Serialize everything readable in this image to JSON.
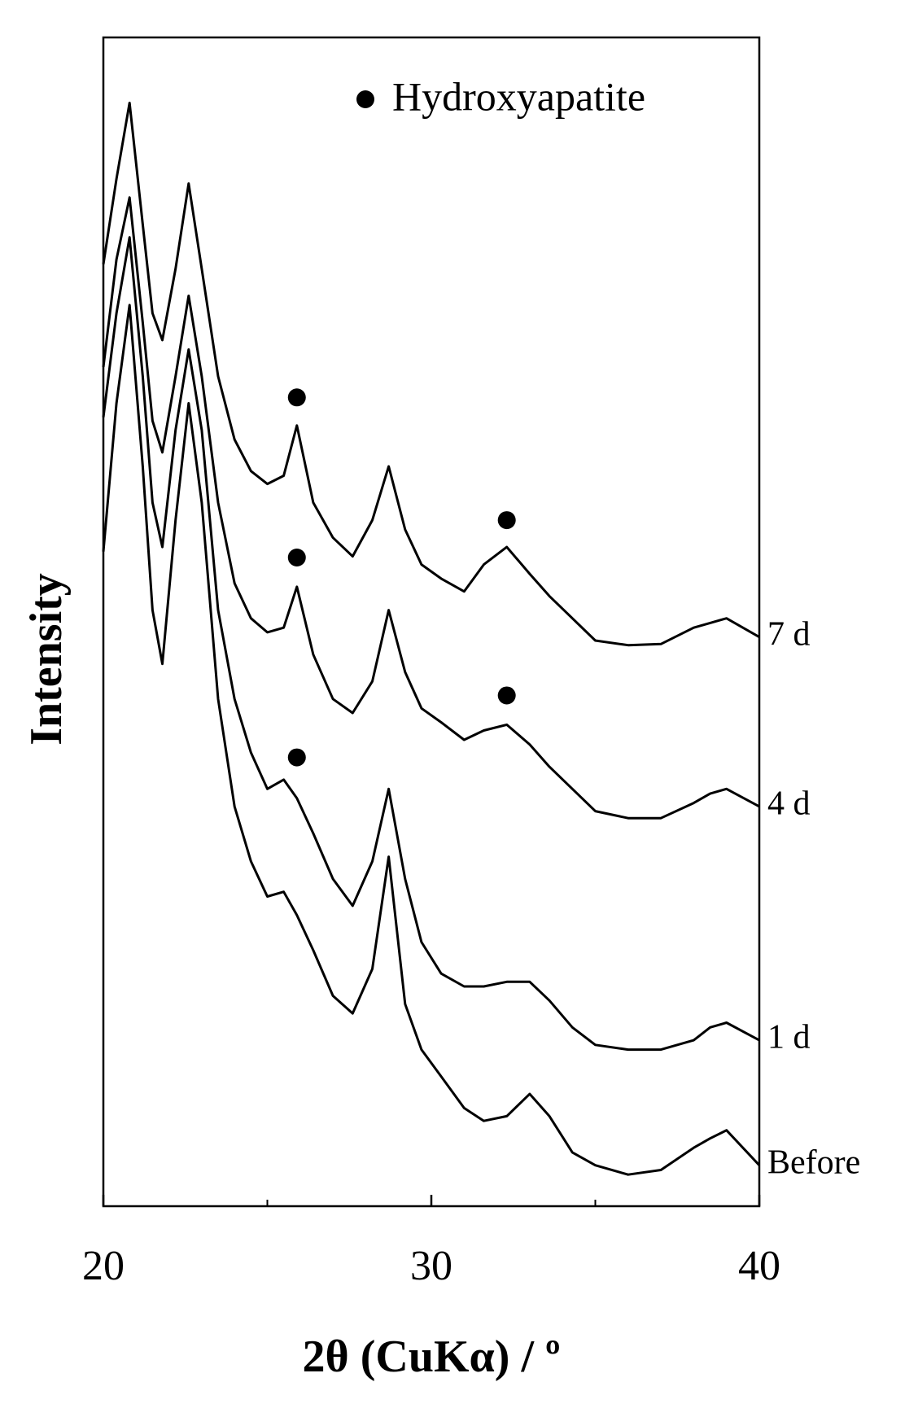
{
  "chart_data": {
    "type": "line",
    "x_label": "2θ (CuKα) / º",
    "y_label": "Intensity",
    "x": [
      20,
      20.4,
      20.8,
      21.2,
      21.5,
      21.8,
      22.2,
      22.6,
      23.0,
      23.5,
      24.0,
      24.5,
      25.0,
      25.5,
      25.9,
      26.4,
      27.0,
      27.6,
      28.2,
      28.7,
      29.2,
      29.7,
      30.3,
      31.0,
      31.6,
      32.3,
      33.0,
      33.6,
      34.3,
      35.0,
      36.0,
      37.0,
      38.0,
      38.5,
      39.0,
      40.0
    ],
    "series": [
      {
        "name": "7 d",
        "color": "#000000",
        "values": [
          80.6,
          87.9,
          94.4,
          84.0,
          76.4,
          74.1,
          80.2,
          87.5,
          80.2,
          71.0,
          65.6,
          62.9,
          61.8,
          62.5,
          66.8,
          60.2,
          57.2,
          55.6,
          58.7,
          63.3,
          57.9,
          54.9,
          53.7,
          52.6,
          54.9,
          56.4,
          54.1,
          52.2,
          50.3,
          48.4,
          48.0,
          48.1,
          49.5,
          49.9,
          50.3,
          48.7
        ]
      },
      {
        "name": "4 d",
        "color": "#000000",
        "values": [
          71.8,
          81.0,
          86.3,
          75.6,
          67.2,
          64.5,
          71.0,
          77.9,
          71.0,
          60.2,
          53.3,
          50.3,
          49.1,
          49.5,
          53.0,
          47.2,
          43.4,
          42.2,
          44.9,
          51.0,
          45.7,
          42.6,
          41.4,
          39.9,
          40.7,
          41.2,
          39.5,
          37.6,
          35.7,
          33.8,
          33.2,
          33.2,
          34.5,
          35.3,
          35.7,
          34.2
        ]
      },
      {
        "name": "1 d",
        "color": "#000000",
        "values": [
          67.5,
          76.4,
          82.9,
          71.0,
          60.2,
          56.4,
          66.4,
          73.3,
          66.4,
          51.0,
          43.4,
          38.8,
          35.7,
          36.5,
          34.9,
          31.9,
          28.0,
          25.7,
          29.5,
          35.7,
          28.0,
          22.6,
          19.9,
          18.8,
          18.8,
          19.2,
          19.2,
          17.6,
          15.3,
          13.8,
          13.4,
          13.4,
          14.2,
          15.3,
          15.7,
          14.2
        ]
      },
      {
        "name": "Before",
        "color": "#000000",
        "values": [
          56.0,
          68.7,
          77.1,
          63.3,
          51.0,
          46.4,
          58.7,
          68.7,
          60.2,
          43.4,
          34.2,
          29.5,
          26.5,
          26.9,
          24.9,
          21.9,
          18.0,
          16.5,
          20.3,
          29.9,
          17.3,
          13.4,
          11.1,
          8.4,
          7.3,
          7.7,
          9.6,
          7.7,
          4.6,
          3.5,
          2.7,
          3.1,
          5.0,
          5.8,
          6.5,
          3.5
        ]
      }
    ],
    "markers": {
      "name": "Hydroxyapatite",
      "color": "#000000",
      "x": [
        25.9,
        32.3,
        25.9,
        32.3,
        25.9
      ],
      "y": [
        69.2,
        58.7,
        55.5,
        43.7,
        38.4
      ]
    },
    "xlim": [
      20,
      40
    ],
    "xticks": [
      20,
      30,
      40
    ],
    "xminor": [
      25,
      35
    ],
    "ylim": [
      0,
      100
    ]
  }
}
